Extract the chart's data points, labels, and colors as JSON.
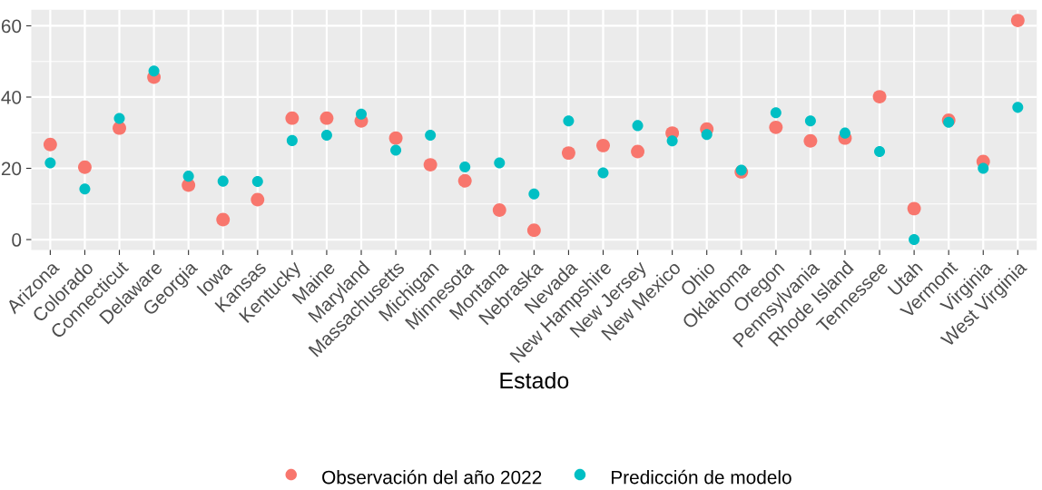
{
  "chart_data": {
    "type": "scatter",
    "xlabel": "Estado",
    "categories": [
      "Arizona",
      "Colorado",
      "Connecticut",
      "Delaware",
      "Georgia",
      "Iowa",
      "Kansas",
      "Kentucky",
      "Maine",
      "Maryland",
      "Massachusetts",
      "Michigan",
      "Minnesota",
      "Montana",
      "Nebraska",
      "Nevada",
      "New Hampshire",
      "New Jersey",
      "New Mexico",
      "Ohio",
      "Oklahoma",
      "Oregon",
      "Pennsylvania",
      "Rhode Island",
      "Tennessee",
      "Utah",
      "Vermont",
      "Virginia",
      "West Virginia"
    ],
    "series": [
      {
        "name": "Observación del año 2022",
        "color": "#f8766d",
        "values": [
          26.7,
          20.3,
          31.3,
          45.6,
          15.3,
          5.6,
          11.2,
          34.1,
          34.1,
          33.3,
          28.5,
          21.0,
          16.5,
          8.3,
          2.6,
          24.3,
          26.4,
          24.7,
          29.9,
          31.0,
          19.0,
          31.5,
          27.7,
          28.5,
          40.1,
          8.7,
          33.5,
          21.9,
          61.5
        ]
      },
      {
        "name": "Predicción de modelo",
        "color": "#00bfc4",
        "values": [
          21.5,
          14.2,
          34.0,
          47.3,
          17.8,
          16.4,
          16.3,
          27.8,
          29.3,
          35.2,
          25.1,
          29.3,
          20.4,
          21.5,
          12.8,
          33.3,
          18.7,
          32.0,
          27.7,
          29.5,
          19.5,
          35.6,
          33.3,
          29.9,
          24.7,
          0,
          32.9,
          20.0,
          37.1
        ]
      }
    ],
    "ylim": [
      -2.9,
      64.5
    ],
    "yticks": [
      0,
      20,
      40,
      60
    ],
    "grid": true,
    "legend": "bottom",
    "marker": "circle"
  }
}
